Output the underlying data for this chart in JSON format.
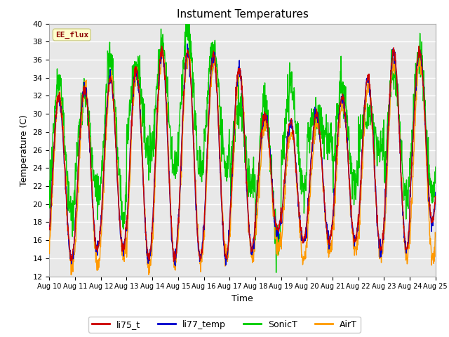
{
  "title": "Instument Temperatures",
  "xlabel": "Time",
  "ylabel": "Temperature (C)",
  "ylim": [
    12,
    40
  ],
  "x_tick_labels": [
    "Aug 10",
    "Aug 11",
    "Aug 12",
    "Aug 13",
    "Aug 14",
    "Aug 15",
    "Aug 16",
    "Aug 17",
    "Aug 18",
    "Aug 19",
    "Aug 20",
    "Aug 21",
    "Aug 22",
    "Aug 23",
    "Aug 24",
    "Aug 25"
  ],
  "colors": {
    "li75_t": "#cc0000",
    "li77_temp": "#0000cc",
    "SonicT": "#00cc00",
    "AirT": "#ff9900"
  },
  "annotation_text": "EE_flux",
  "annotation_color": "#8b0000",
  "annotation_bg": "#ffffcc",
  "fig_bg": "#ffffff",
  "plot_bg": "#e8e8e8",
  "grid_color": "#ffffff",
  "legend_labels": [
    "li75_t",
    "li77_temp",
    "SonicT",
    "AirT"
  ]
}
